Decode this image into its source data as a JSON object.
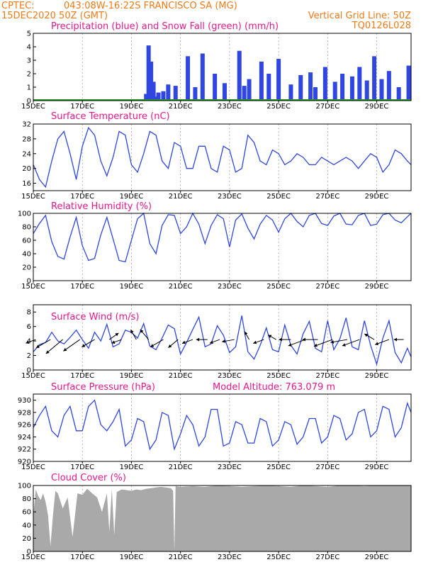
{
  "header": {
    "source": "CPTEC:",
    "location": "043:08W-16:22S  FRANCISCO SA (MG)",
    "run": "15DEC2020 50Z (GMT)",
    "grid_note": "Vertical Grid Line: 50Z",
    "model": "TQ0126L028"
  },
  "colors": {
    "header": "#f07a18",
    "title": "#e8188a",
    "series": "#2f46e0",
    "snow": "#1fa01f",
    "cloud": "#a9a9a9",
    "grid": "#9a9a9a"
  },
  "x_ticks": [
    "15DEC",
    "17DEC",
    "19DEC",
    "21DEC",
    "23DEC",
    "25DEC",
    "27DEC",
    "29DEC"
  ],
  "x_tick_days": [
    15,
    17,
    19,
    21,
    23,
    25,
    27,
    29
  ],
  "x_range": [
    15,
    30.4
  ],
  "chart_data": [
    {
      "id": "precip",
      "type": "bar",
      "title": "Precipitation (blue) and Snow Fall (green) (mm/h)",
      "ylim": [
        0,
        5
      ],
      "yticks": [
        0,
        1,
        2,
        3,
        4,
        5
      ],
      "series": [
        {
          "name": "Precipitation",
          "color": "#2f46e0",
          "x": [
            19.6,
            19.7,
            19.8,
            19.9,
            20.0,
            20.1,
            20.3,
            20.5,
            20.8,
            21.3,
            21.6,
            21.9,
            22.4,
            22.8,
            23.4,
            23.6,
            23.8,
            24.3,
            24.6,
            25.0,
            25.5,
            25.9,
            26.3,
            26.5,
            26.9,
            27.3,
            27.6,
            28.0,
            28.3,
            28.6,
            28.9,
            29.2,
            29.5,
            29.9,
            30.3
          ],
          "values": [
            0.5,
            4.1,
            2.9,
            1.4,
            0.3,
            0.6,
            0.7,
            1.2,
            1.1,
            3.3,
            1.0,
            3.5,
            2.0,
            1.3,
            3.7,
            1.1,
            1.6,
            2.9,
            2.0,
            3.1,
            1.2,
            1.9,
            2.1,
            1.0,
            2.5,
            1.4,
            2.0,
            1.8,
            2.5,
            1.5,
            3.3,
            1.6,
            2.2,
            1.0,
            2.6
          ]
        },
        {
          "name": "Snow Fall",
          "color": "#1fa01f",
          "x": [
            15,
            30.4
          ],
          "values": [
            0,
            0
          ]
        }
      ]
    },
    {
      "id": "temp",
      "type": "line",
      "title": "Surface Temperature (nC)",
      "ylim": [
        14,
        32
      ],
      "yticks": [
        16,
        20,
        24,
        28,
        32
      ],
      "x": [
        15.0,
        15.25,
        15.5,
        15.75,
        16.0,
        16.25,
        16.5,
        16.75,
        17.0,
        17.25,
        17.5,
        17.75,
        18.0,
        18.25,
        18.5,
        18.75,
        19.0,
        19.25,
        19.5,
        19.75,
        20.0,
        20.25,
        20.5,
        20.75,
        21.0,
        21.25,
        21.5,
        21.75,
        22.0,
        22.25,
        22.5,
        22.75,
        23.0,
        23.25,
        23.5,
        23.75,
        24.0,
        24.25,
        24.5,
        24.75,
        25.0,
        25.25,
        25.5,
        25.75,
        26.0,
        26.25,
        26.5,
        26.75,
        27.0,
        27.25,
        27.5,
        27.75,
        28.0,
        28.25,
        28.5,
        28.75,
        29.0,
        29.25,
        29.5,
        29.75,
        30.0,
        30.25,
        30.4
      ],
      "values": [
        21,
        17,
        15,
        22,
        28,
        30,
        24,
        17,
        26,
        31,
        29,
        22,
        18,
        23,
        30,
        29,
        21,
        19,
        24,
        30,
        29,
        22,
        20,
        27,
        26,
        20,
        20,
        26,
        26,
        20,
        19,
        26,
        25,
        19,
        20,
        29,
        27,
        22,
        21,
        25,
        24,
        21,
        22,
        24,
        23,
        21,
        21,
        23,
        22,
        21,
        22,
        23,
        22,
        20,
        22,
        24,
        23,
        19,
        21,
        25,
        24,
        22,
        21
      ]
    },
    {
      "id": "humidity",
      "type": "line",
      "title": "Relative Humidity (%)",
      "ylim": [
        0,
        100
      ],
      "yticks": [
        0,
        20,
        40,
        60,
        80,
        100
      ],
      "x": [
        15.0,
        15.25,
        15.5,
        15.75,
        16.0,
        16.25,
        16.5,
        16.75,
        17.0,
        17.25,
        17.5,
        17.75,
        18.0,
        18.25,
        18.5,
        18.75,
        19.0,
        19.25,
        19.5,
        19.75,
        20.0,
        20.25,
        20.5,
        20.75,
        21.0,
        21.25,
        21.5,
        21.75,
        22.0,
        22.25,
        22.5,
        22.75,
        23.0,
        23.25,
        23.5,
        23.75,
        24.0,
        24.25,
        24.5,
        24.75,
        25.0,
        25.25,
        25.5,
        25.75,
        26.0,
        26.25,
        26.5,
        26.75,
        27.0,
        27.25,
        27.5,
        27.75,
        28.0,
        28.25,
        28.5,
        28.75,
        29.0,
        29.25,
        29.5,
        29.75,
        30.0,
        30.25,
        30.4
      ],
      "values": [
        70,
        85,
        97,
        58,
        36,
        32,
        65,
        94,
        52,
        30,
        33,
        68,
        94,
        62,
        30,
        28,
        60,
        92,
        100,
        55,
        40,
        82,
        98,
        97,
        70,
        80,
        100,
        84,
        55,
        82,
        98,
        92,
        50,
        90,
        99,
        78,
        62,
        84,
        97,
        90,
        72,
        92,
        100,
        88,
        80,
        97,
        100,
        85,
        82,
        96,
        100,
        84,
        83,
        97,
        100,
        82,
        84,
        98,
        100,
        90,
        86,
        95,
        100
      ]
    },
    {
      "id": "wind",
      "type": "line",
      "title": "Surface Wind (m/s)",
      "ylim": [
        0,
        9
      ],
      "yticks": [
        0,
        2,
        4,
        6,
        8
      ],
      "x": [
        15.0,
        15.25,
        15.5,
        15.75,
        16.0,
        16.25,
        16.5,
        16.75,
        17.0,
        17.25,
        17.5,
        17.75,
        18.0,
        18.25,
        18.5,
        18.75,
        19.0,
        19.25,
        19.5,
        19.75,
        20.0,
        20.25,
        20.5,
        20.75,
        21.0,
        21.25,
        21.5,
        21.75,
        22.0,
        22.25,
        22.5,
        22.75,
        23.0,
        23.25,
        23.5,
        23.75,
        24.0,
        24.25,
        24.5,
        24.75,
        25.0,
        25.25,
        25.5,
        25.75,
        26.0,
        26.25,
        26.5,
        26.75,
        27.0,
        27.25,
        27.5,
        27.75,
        28.0,
        28.25,
        28.5,
        28.75,
        29.0,
        29.25,
        29.5,
        29.75,
        30.0,
        30.25,
        30.4
      ],
      "values": [
        2.5,
        3.5,
        3.8,
        5.2,
        4.0,
        3.6,
        4.5,
        5.5,
        4.2,
        3.0,
        5.2,
        4.0,
        6.3,
        3.2,
        3.6,
        5.5,
        5.2,
        4.4,
        6.4,
        3.3,
        2.8,
        4.4,
        6.2,
        5.7,
        2.2,
        3.8,
        5.6,
        7.3,
        3.2,
        3.6,
        6.1,
        4.8,
        2.4,
        3.2,
        7.5,
        2.5,
        1.5,
        3.4,
        5.8,
        2.8,
        2.5,
        6.2,
        3.4,
        2.2,
        5.0,
        6.7,
        3.0,
        2.5,
        6.8,
        2.8,
        4.3,
        7.2,
        3.2,
        2.8,
        6.8,
        3.4,
        0.8,
        4.4,
        6.8,
        2.4,
        1.0,
        3.0,
        1.8
      ],
      "arrows": {
        "x": [
          15.1,
          15.7,
          16.2,
          16.9,
          17.5,
          18.1,
          18.6,
          19.2,
          19.7,
          20.3,
          20.9,
          21.5,
          22.1,
          22.6,
          23.2,
          23.8,
          24.4,
          24.9,
          25.5,
          26.1,
          26.6,
          27.2,
          27.8,
          28.3,
          28.9,
          29.5,
          30.1
        ],
        "dir_deg": [
          200,
          210,
          220,
          215,
          210,
          35,
          200,
          120,
          130,
          210,
          220,
          200,
          180,
          200,
          190,
          120,
          200,
          150,
          180,
          200,
          180,
          200,
          190,
          200,
          150,
          200,
          180
        ],
        "speed": [
          1.8,
          3.5,
          5.0,
          4.5,
          3.0,
          2.0,
          1.8,
          2.0,
          2.5,
          3.0,
          2.4,
          2.0,
          2.0,
          1.8,
          2.4,
          1.4,
          2.0,
          1.4,
          2.2,
          4.0,
          3.2,
          4.4,
          3.6,
          4.0,
          2.0,
          3.0,
          1.6
        ]
      }
    },
    {
      "id": "pressure",
      "type": "line",
      "title": "Surface Pressure (hPa)",
      "annotation": "Model Altitude: 763.079 m",
      "ylim": [
        920,
        931
      ],
      "yticks": [
        920,
        922,
        924,
        926,
        928,
        930
      ],
      "x": [
        15.0,
        15.25,
        15.5,
        15.75,
        16.0,
        16.25,
        16.5,
        16.75,
        17.0,
        17.25,
        17.5,
        17.75,
        18.0,
        18.25,
        18.5,
        18.75,
        19.0,
        19.25,
        19.5,
        19.75,
        20.0,
        20.25,
        20.5,
        20.75,
        21.0,
        21.25,
        21.5,
        21.75,
        22.0,
        22.25,
        22.5,
        22.75,
        23.0,
        23.25,
        23.5,
        23.75,
        24.0,
        24.25,
        24.5,
        24.75,
        25.0,
        25.25,
        25.5,
        25.75,
        26.0,
        26.25,
        26.5,
        26.75,
        27.0,
        27.25,
        27.5,
        27.75,
        28.0,
        28.25,
        28.5,
        28.75,
        29.0,
        29.25,
        29.5,
        29.75,
        30.0,
        30.25,
        30.4
      ],
      "values": [
        925.5,
        927.5,
        929.0,
        925.0,
        924.0,
        927.5,
        929.0,
        925.0,
        925.0,
        929.0,
        930.0,
        926.0,
        925.0,
        926.5,
        928.5,
        922.5,
        923.5,
        927.0,
        926.5,
        922.0,
        923.5,
        928.0,
        927.5,
        922.0,
        924.5,
        927.5,
        926.0,
        922.5,
        924.0,
        928.5,
        928.5,
        922.5,
        923.0,
        926.5,
        926.0,
        923.0,
        923.0,
        927.0,
        926.5,
        922.5,
        923.5,
        926.5,
        926.0,
        922.8,
        924.0,
        927.0,
        927.0,
        923.0,
        924.0,
        927.5,
        927.0,
        923.5,
        924.5,
        928.0,
        928.5,
        924.0,
        925.0,
        929.0,
        928.5,
        924.0,
        925.5,
        929.5,
        928.0
      ]
    },
    {
      "id": "cloud",
      "type": "area",
      "title": "Cloud Cover (%)",
      "ylim": [
        0,
        100
      ],
      "yticks": [
        0,
        20,
        40,
        60,
        80,
        100
      ],
      "color": "#a9a9a9",
      "x": [
        15.0,
        15.1,
        15.2,
        15.3,
        15.4,
        15.5,
        15.6,
        15.7,
        15.8,
        15.9,
        16.0,
        16.2,
        16.4,
        16.6,
        16.8,
        17.0,
        17.2,
        17.4,
        17.6,
        17.8,
        18.0,
        18.1,
        18.2,
        18.3,
        18.4,
        18.6,
        18.8,
        19.0,
        19.2,
        19.4,
        19.6,
        19.8,
        20.0,
        20.2,
        20.4,
        20.6,
        20.7,
        20.75,
        20.8,
        21.0,
        21.5,
        22.0,
        22.5,
        23.0,
        23.5,
        24.0,
        24.5,
        25.0,
        25.5,
        26.0,
        26.5,
        27.0,
        27.5,
        28.0,
        28.5,
        29.0,
        29.5,
        30.0,
        30.4
      ],
      "values": [
        55,
        94,
        84,
        78,
        88,
        75,
        55,
        8,
        55,
        92,
        88,
        65,
        82,
        22,
        88,
        86,
        95,
        88,
        82,
        60,
        88,
        30,
        95,
        25,
        90,
        94,
        93,
        92,
        94,
        93,
        95,
        96,
        97,
        98,
        97,
        96,
        92,
        0,
        99,
        98,
        99,
        98,
        100,
        99,
        98,
        99,
        100,
        99,
        98,
        100,
        99,
        98,
        100,
        100,
        99,
        100,
        100,
        100,
        100
      ]
    }
  ]
}
